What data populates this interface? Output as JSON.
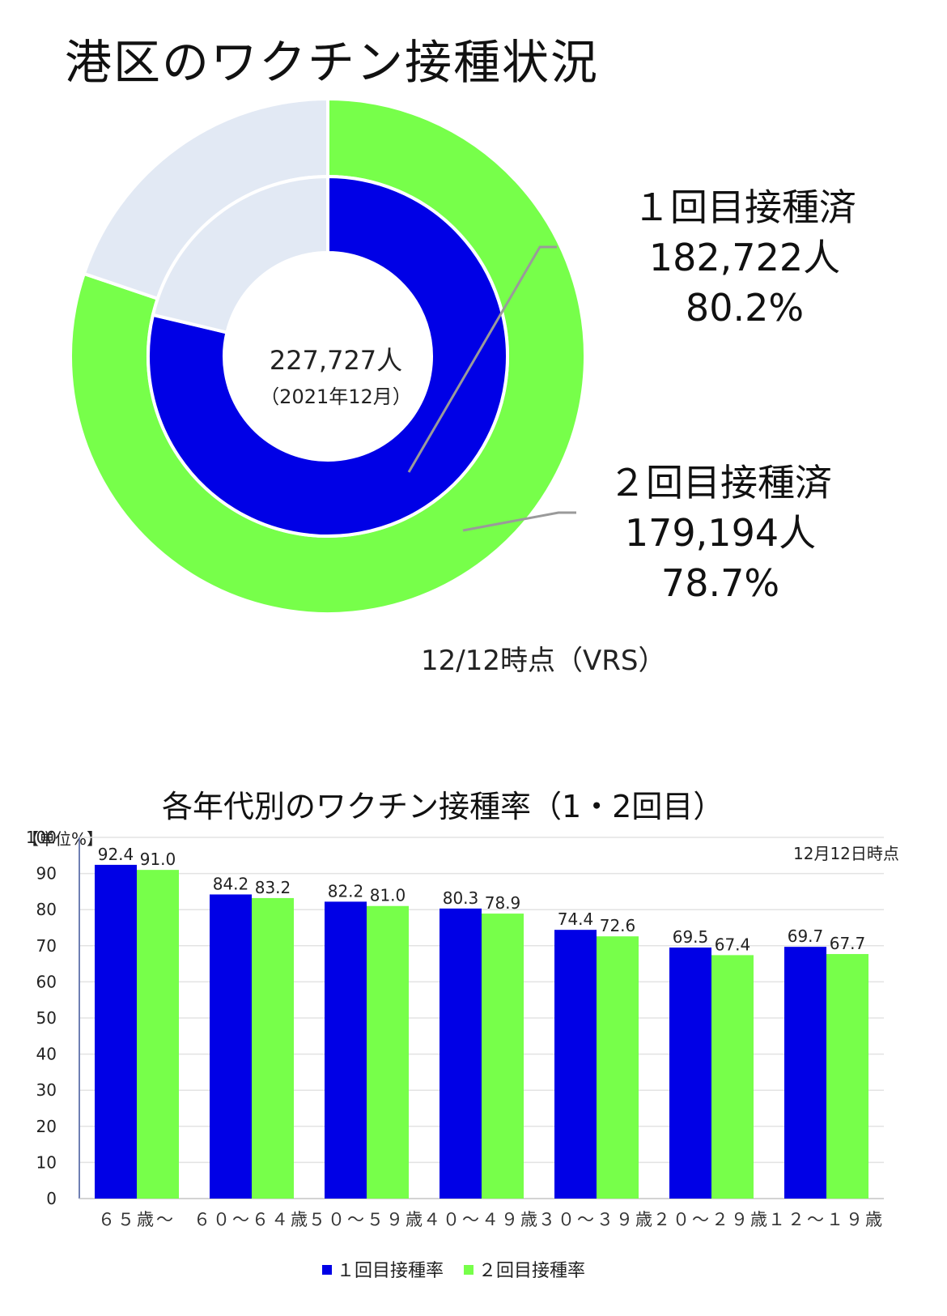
{
  "title": "港区のワクチン接種状況",
  "donut": {
    "center_total": "227,727人",
    "center_date": "（2021年12月）",
    "as_of": "12/12時点（VRS）",
    "first_dose": {
      "label": "１回目接種済",
      "count": "182,722人",
      "percent_text": "80.2%",
      "value": 80.2
    },
    "second_dose": {
      "label": "２回目接種済",
      "count": "179,194人",
      "percent_text": "78.7%",
      "value": 78.7
    },
    "colors": {
      "first": "#0000e6",
      "second": "#77ff4a",
      "remainder": "#e2e9f4"
    }
  },
  "chart_data": {
    "type": "bar",
    "title": "各年代別のワクチン接種率（1・2回目）",
    "unit_label": "【単位%】",
    "as_of": "12月12日時点",
    "categories": [
      "６５歳～",
      "６０～６４歳",
      "５０～５９歳",
      "４０～４９歳",
      "３０～３９歳",
      "２０～２９歳",
      "１２～１９歳"
    ],
    "series": [
      {
        "name": "１回目接種率",
        "color": "#0000e6",
        "values": [
          92.4,
          84.2,
          82.2,
          80.3,
          74.4,
          69.5,
          69.7
        ],
        "labels": [
          "92.4",
          "84.2",
          "82.2",
          "80.3",
          "74.4",
          "69.5",
          "69.7"
        ]
      },
      {
        "name": "２回目接種率",
        "color": "#77ff4a",
        "values": [
          91.0,
          83.2,
          81.0,
          78.9,
          72.6,
          67.4,
          67.7
        ],
        "labels": [
          "91.0",
          "83.2",
          "81.0",
          "78.9",
          "72.6",
          "67.4",
          "67.7"
        ]
      }
    ],
    "ylim": [
      0,
      100
    ],
    "yticks": [
      "0",
      "10",
      "20",
      "30",
      "40",
      "50",
      "60",
      "70",
      "80",
      "90",
      "100"
    ],
    "grid": true,
    "legend": "bottom"
  }
}
